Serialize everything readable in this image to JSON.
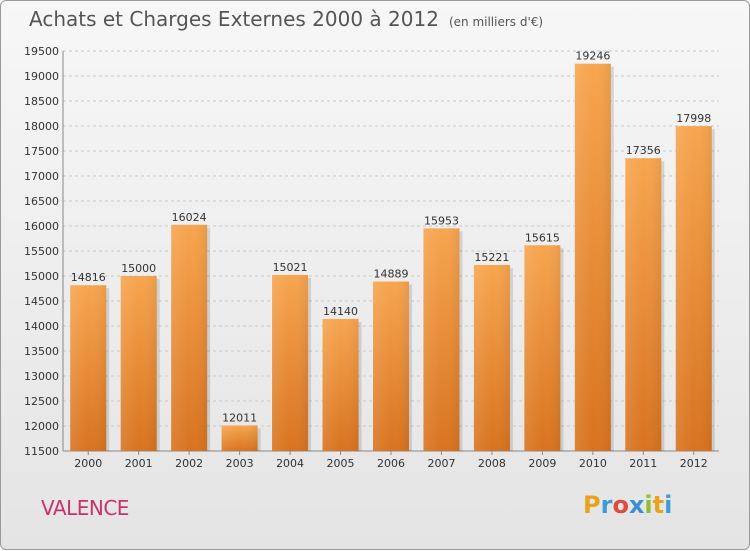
{
  "chart_data": {
    "type": "bar",
    "title": "Achats et Charges Externes 2000 à 2012",
    "subtitle": "(en milliers d'€)",
    "categories": [
      "2000",
      "2001",
      "2002",
      "2003",
      "2004",
      "2005",
      "2006",
      "2007",
      "2008",
      "2009",
      "2010",
      "2011",
      "2012"
    ],
    "values": [
      14816,
      15000,
      16024,
      12011,
      15021,
      14140,
      14889,
      15953,
      15221,
      15615,
      19246,
      17356,
      17998
    ],
    "value_labels": [
      "14816",
      "15000",
      "16024",
      "12011",
      "15021",
      "14140",
      "14889",
      "15953",
      "15221",
      "15615",
      "19246",
      "17356",
      "17998"
    ],
    "ylim": [
      11500,
      19500
    ],
    "y_ticks": [
      "11500",
      "12000",
      "12500",
      "13000",
      "13500",
      "14000",
      "14500",
      "15000",
      "15500",
      "16000",
      "16500",
      "17000",
      "17500",
      "18000",
      "18500",
      "19000",
      "19500"
    ],
    "grid": true,
    "bar_color_top": "#f7a54f",
    "bar_color_bottom": "#d8731f",
    "xlabel": "",
    "ylabel": ""
  },
  "footer": {
    "city": "VALENCE",
    "logo_letters": [
      "P",
      "r",
      "o",
      "x",
      "i",
      "t",
      "i"
    ],
    "logo_colors": [
      "#e8a21c",
      "#3f9bd8",
      "#e24a3b",
      "#3a8fd6",
      "#8cbf2f",
      "#e8a21c",
      "#3f9bd8"
    ]
  }
}
